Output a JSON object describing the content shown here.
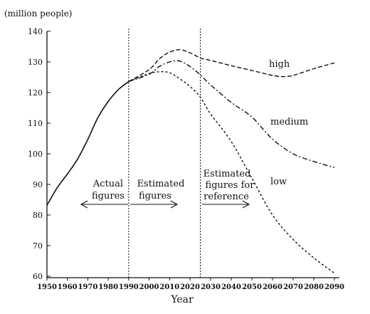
{
  "chart_data": {
    "type": "line",
    "ylabel": "(million people)",
    "xlabel": "Year",
    "ylim": [
      60,
      140
    ],
    "yticks": [
      60,
      70,
      80,
      90,
      100,
      110,
      120,
      130,
      140
    ],
    "xtick_labels": [
      "1950",
      "1960",
      "1970",
      "1980",
      "1990",
      "2000",
      "2010",
      "2020",
      "2030",
      "2040",
      "2050",
      "2060",
      "2070",
      "2080",
      "2090"
    ],
    "grid": false,
    "series": [
      {
        "name": "Actual figures",
        "line_style": "solid",
        "points": [
          {
            "x": 1950,
            "y": 83.2
          },
          {
            "x": 1955,
            "y": 88.9
          },
          {
            "x": 1960,
            "y": 93.4
          },
          {
            "x": 1965,
            "y": 98.3
          },
          {
            "x": 1970,
            "y": 104.7
          },
          {
            "x": 1975,
            "y": 111.9
          },
          {
            "x": 1980,
            "y": 117.1
          },
          {
            "x": 1985,
            "y": 121.0
          },
          {
            "x": 1990,
            "y": 123.6
          }
        ]
      },
      {
        "name": "high",
        "line_style": "dashed",
        "points": [
          {
            "x": 1990,
            "y": 123.6
          },
          {
            "x": 2000,
            "y": 127.5
          },
          {
            "x": 2005,
            "y": 131.0
          },
          {
            "x": 2010,
            "y": 133.2
          },
          {
            "x": 2015,
            "y": 134.0
          },
          {
            "x": 2020,
            "y": 133.0
          },
          {
            "x": 2025,
            "y": 131.3
          },
          {
            "x": 2030,
            "y": 130.5
          },
          {
            "x": 2040,
            "y": 128.8
          },
          {
            "x": 2050,
            "y": 127.2
          },
          {
            "x": 2060,
            "y": 125.6
          },
          {
            "x": 2065,
            "y": 125.2
          },
          {
            "x": 2070,
            "y": 125.6
          },
          {
            "x": 2080,
            "y": 127.8
          },
          {
            "x": 2090,
            "y": 129.7
          }
        ]
      },
      {
        "name": "medium",
        "line_style": "dash-dot",
        "points": [
          {
            "x": 1990,
            "y": 123.6
          },
          {
            "x": 2000,
            "y": 126.0
          },
          {
            "x": 2005,
            "y": 128.5
          },
          {
            "x": 2010,
            "y": 130.0
          },
          {
            "x": 2015,
            "y": 130.3
          },
          {
            "x": 2020,
            "y": 128.5
          },
          {
            "x": 2025,
            "y": 125.8
          },
          {
            "x": 2030,
            "y": 122.5
          },
          {
            "x": 2040,
            "y": 116.8
          },
          {
            "x": 2050,
            "y": 112.0
          },
          {
            "x": 2060,
            "y": 104.8
          },
          {
            "x": 2070,
            "y": 100.0
          },
          {
            "x": 2080,
            "y": 97.5
          },
          {
            "x": 2090,
            "y": 95.5
          }
        ]
      },
      {
        "name": "low",
        "line_style": "dotted",
        "points": [
          {
            "x": 1990,
            "y": 123.6
          },
          {
            "x": 2000,
            "y": 126.2
          },
          {
            "x": 2005,
            "y": 126.8
          },
          {
            "x": 2010,
            "y": 126.5
          },
          {
            "x": 2015,
            "y": 124.5
          },
          {
            "x": 2020,
            "y": 122.0
          },
          {
            "x": 2025,
            "y": 118.5
          },
          {
            "x": 2030,
            "y": 113.0
          },
          {
            "x": 2040,
            "y": 104.0
          },
          {
            "x": 2050,
            "y": 92.0
          },
          {
            "x": 2060,
            "y": 80.0
          },
          {
            "x": 2070,
            "y": 72.0
          },
          {
            "x": 2080,
            "y": 66.0
          },
          {
            "x": 2090,
            "y": 61.0
          }
        ]
      }
    ],
    "dividers": [
      1990,
      2025
    ],
    "annotations": {
      "actual": [
        "Actual",
        "figures"
      ],
      "estimated": [
        "Estimated",
        "figures"
      ],
      "reference": [
        "Estimated",
        "figures for",
        "reference"
      ]
    },
    "series_labels": {
      "high": "high",
      "medium": "medium",
      "low": "low"
    }
  }
}
